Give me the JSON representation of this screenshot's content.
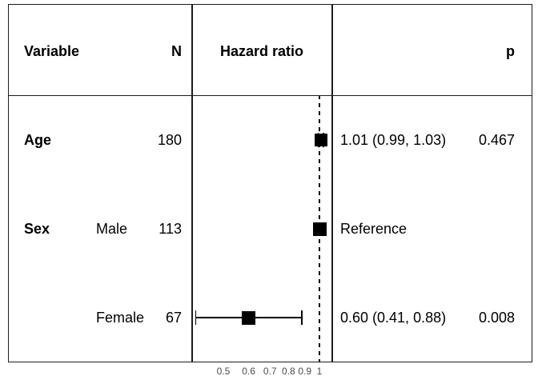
{
  "table": {
    "headers": {
      "variable": "Variable",
      "n": "N",
      "hazard_ratio": "Hazard ratio",
      "p": "p"
    },
    "rows": [
      {
        "variable": "Age",
        "level": "",
        "n": "180",
        "estimate": "1.01 (0.99, 1.03)",
        "p": "0.467"
      },
      {
        "variable": "Sex",
        "level": "Male",
        "n": "113",
        "estimate": "Reference",
        "p": ""
      },
      {
        "variable": "",
        "level": "Female",
        "n": "67",
        "estimate": "0.60 (0.41, 0.88)",
        "p": "0.008"
      }
    ]
  },
  "chart_data": {
    "type": "forest-plot",
    "scale": "log10",
    "reference_line": 1,
    "axis_ticks": [
      0.5,
      0.6,
      0.7,
      0.8,
      0.9,
      1
    ],
    "axis_tick_labels": [
      "0.5",
      "0.6",
      "0.7",
      "0.8",
      "0.9",
      "1"
    ],
    "rows": [
      {
        "label": "Age",
        "n": 180,
        "hr": 1.01,
        "ci_low": 0.99,
        "ci_high": 1.03,
        "p": 0.467,
        "reference": false
      },
      {
        "label": "Sex Male",
        "n": 113,
        "hr": 1.0,
        "ci_low": null,
        "ci_high": null,
        "p": null,
        "reference": true
      },
      {
        "label": "Sex Female",
        "n": 67,
        "hr": 0.6,
        "ci_low": 0.41,
        "ci_high": 0.88,
        "p": 0.008,
        "reference": false
      }
    ],
    "shaded_rows": [
      0,
      2
    ],
    "legend": null,
    "title": ""
  },
  "colors": {
    "shaded_row": "#eeeeee",
    "border": "#1c1c1c",
    "marker": "#000000",
    "tick_text": "#4d4d4d",
    "background": "#ffffff"
  }
}
